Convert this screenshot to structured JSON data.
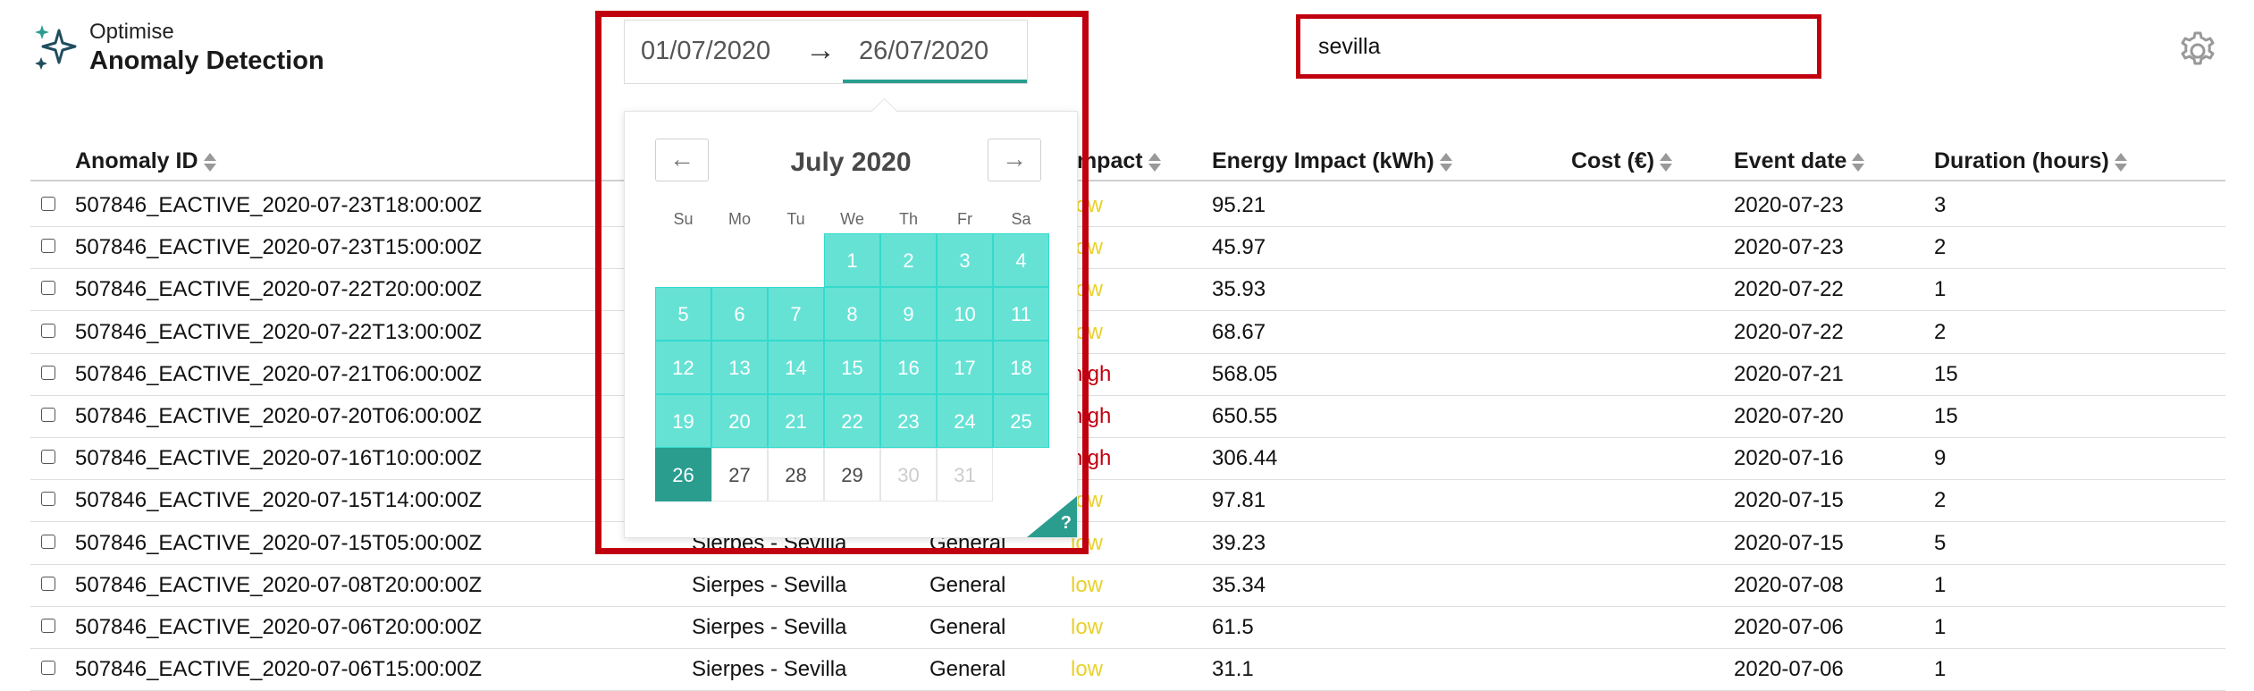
{
  "header": {
    "app_small": "Optimise",
    "app_title": "Anomaly Detection",
    "logo_icon": "sparkles-icon",
    "settings_icon": "gear-icon"
  },
  "search": {
    "value": "sevilla"
  },
  "date_range": {
    "start": "01/07/2020",
    "arrow": "→",
    "end": "26/07/2020"
  },
  "calendar": {
    "month": "July 2020",
    "prev": "←",
    "next": "→",
    "help": "?",
    "weekdays": [
      "Su",
      "Mo",
      "Tu",
      "We",
      "Th",
      "Fr",
      "Sa"
    ],
    "first_weekday_index": 3,
    "days": [
      "1",
      "2",
      "3",
      "4",
      "5",
      "6",
      "7",
      "8",
      "9",
      "10",
      "11",
      "12",
      "13",
      "14",
      "15",
      "16",
      "17",
      "18",
      "19",
      "20",
      "21",
      "22",
      "23",
      "24",
      "25",
      "26",
      "27",
      "28",
      "29",
      "30",
      "31"
    ],
    "selected_through": 25,
    "range_end": 26,
    "blocked_from": 30
  },
  "table": {
    "headers": {
      "anomaly_id": "Anomaly ID",
      "impact": "Impact",
      "energy": "Energy Impact (kWh)",
      "cost": "Cost (€)",
      "event_date": "Event date",
      "duration": "Duration (hours)"
    },
    "rows": [
      {
        "id": "507846_EACTIVE_2020-07-23T18:00:00Z",
        "site": "",
        "type": "",
        "impact": "low",
        "energy": "95.21",
        "cost": "",
        "date": "2020-07-23",
        "duration": "3"
      },
      {
        "id": "507846_EACTIVE_2020-07-23T15:00:00Z",
        "site": "",
        "type": "",
        "impact": "low",
        "energy": "45.97",
        "cost": "",
        "date": "2020-07-23",
        "duration": "2"
      },
      {
        "id": "507846_EACTIVE_2020-07-22T20:00:00Z",
        "site": "",
        "type": "",
        "impact": "low",
        "energy": "35.93",
        "cost": "",
        "date": "2020-07-22",
        "duration": "1"
      },
      {
        "id": "507846_EACTIVE_2020-07-22T13:00:00Z",
        "site": "",
        "type": "",
        "impact": "low",
        "energy": "68.67",
        "cost": "",
        "date": "2020-07-22",
        "duration": "2"
      },
      {
        "id": "507846_EACTIVE_2020-07-21T06:00:00Z",
        "site": "",
        "type": "",
        "impact": "high",
        "energy": "568.05",
        "cost": "",
        "date": "2020-07-21",
        "duration": "15"
      },
      {
        "id": "507846_EACTIVE_2020-07-20T06:00:00Z",
        "site": "",
        "type": "",
        "impact": "high",
        "energy": "650.55",
        "cost": "",
        "date": "2020-07-20",
        "duration": "15"
      },
      {
        "id": "507846_EACTIVE_2020-07-16T10:00:00Z",
        "site": "",
        "type": "",
        "impact": "high",
        "energy": "306.44",
        "cost": "",
        "date": "2020-07-16",
        "duration": "9"
      },
      {
        "id": "507846_EACTIVE_2020-07-15T14:00:00Z",
        "site": "",
        "type": "",
        "impact": "low",
        "energy": "97.81",
        "cost": "",
        "date": "2020-07-15",
        "duration": "2"
      },
      {
        "id": "507846_EACTIVE_2020-07-15T05:00:00Z",
        "site": "Sierpes - Sevilla",
        "type": "General",
        "impact": "low",
        "energy": "39.23",
        "cost": "",
        "date": "2020-07-15",
        "duration": "5"
      },
      {
        "id": "507846_EACTIVE_2020-07-08T20:00:00Z",
        "site": "Sierpes - Sevilla",
        "type": "General",
        "impact": "low",
        "energy": "35.34",
        "cost": "",
        "date": "2020-07-08",
        "duration": "1"
      },
      {
        "id": "507846_EACTIVE_2020-07-06T20:00:00Z",
        "site": "Sierpes - Sevilla",
        "type": "General",
        "impact": "low",
        "energy": "61.5",
        "cost": "",
        "date": "2020-07-06",
        "duration": "1"
      },
      {
        "id": "507846_EACTIVE_2020-07-06T15:00:00Z",
        "site": "Sierpes - Sevilla",
        "type": "General",
        "impact": "low",
        "energy": "31.1",
        "cost": "",
        "date": "2020-07-06",
        "duration": "1"
      }
    ]
  }
}
